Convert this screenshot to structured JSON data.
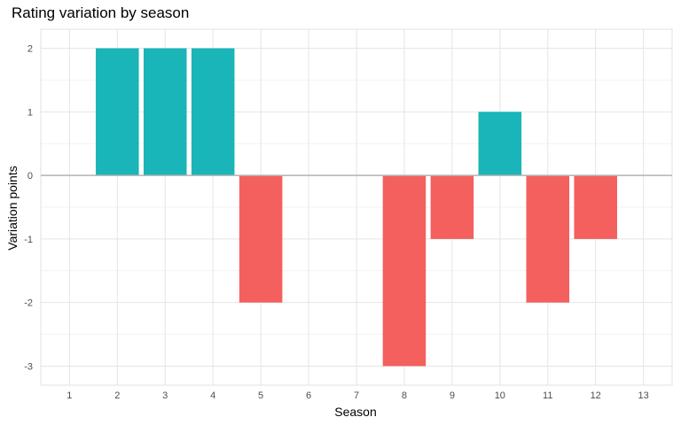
{
  "chart_data": {
    "type": "bar",
    "title": "Rating variation by season",
    "xlabel": "Season",
    "ylabel": "Variation points",
    "categories": [
      "1",
      "2",
      "3",
      "4",
      "5",
      "6",
      "7",
      "8",
      "9",
      "10",
      "11",
      "12",
      "13"
    ],
    "values": [
      0,
      2,
      2,
      2,
      -2,
      0,
      0,
      -3,
      -1,
      1,
      -2,
      -1,
      0
    ],
    "yticks": [
      "-3",
      "-2",
      "-1",
      "0",
      "1",
      "2"
    ],
    "ylim": [
      -3.3,
      2.3
    ],
    "grid": true,
    "colors": {
      "positive": "#19B5B8",
      "negative": "#F4605E",
      "zero_line": "#b3b3b3",
      "grid": "#e5e5e5"
    }
  }
}
